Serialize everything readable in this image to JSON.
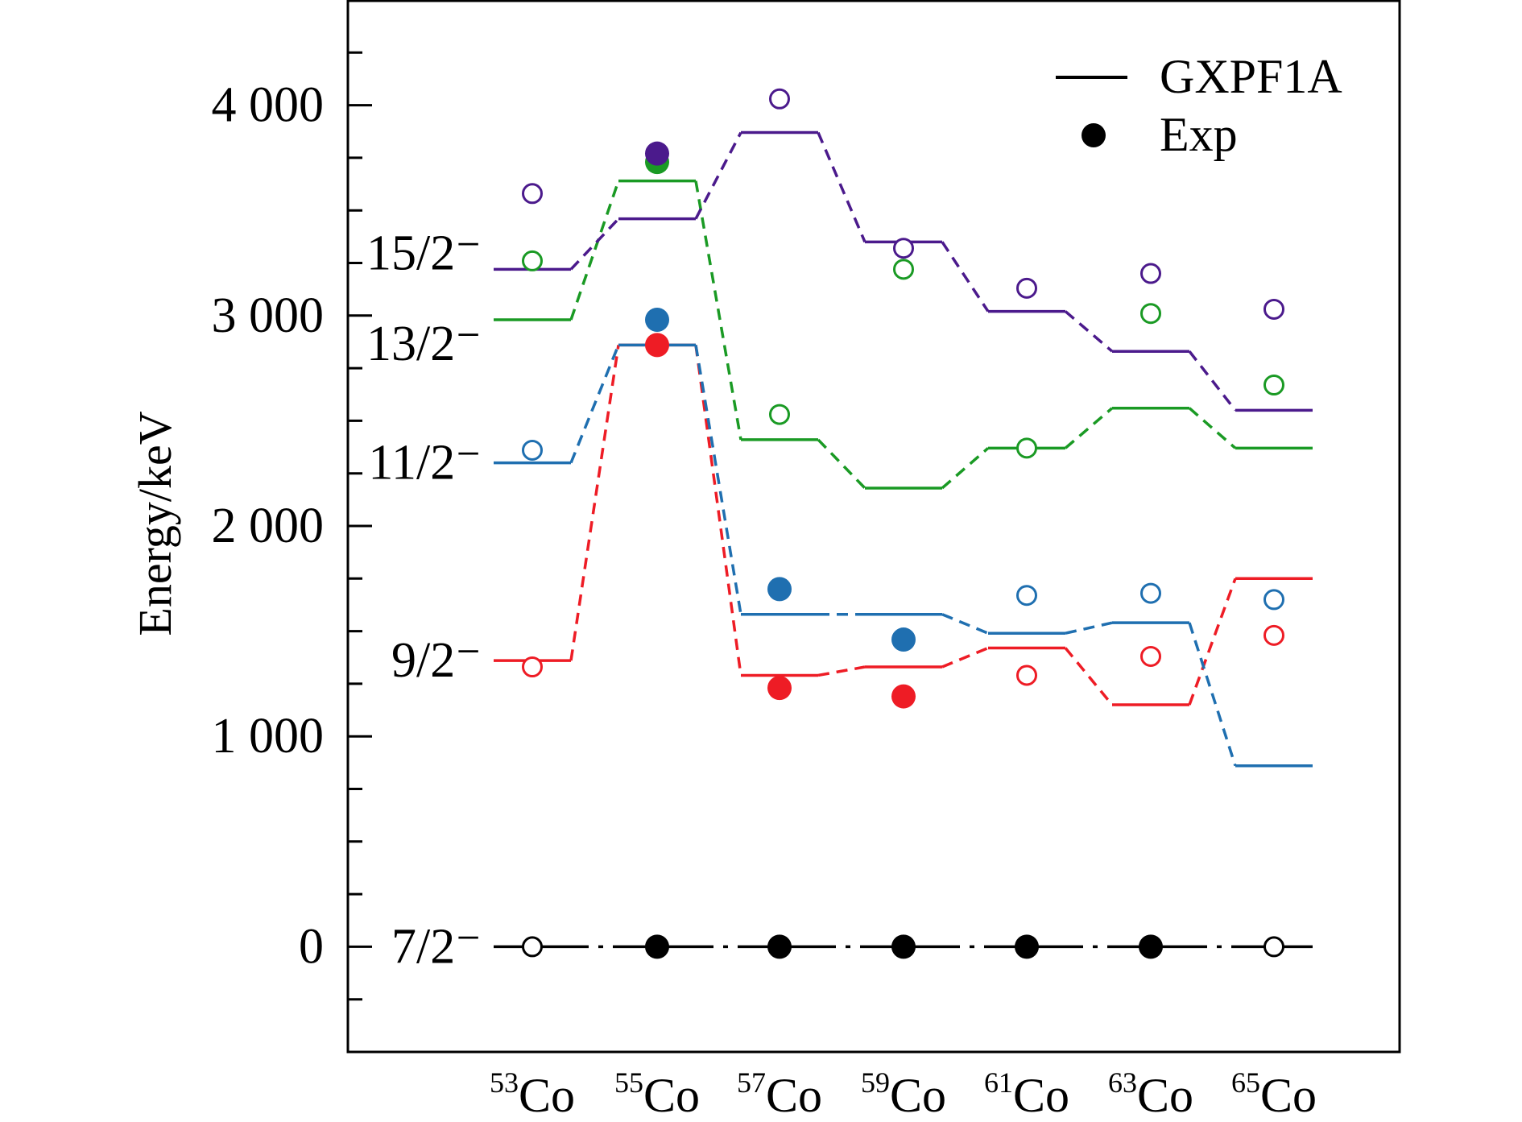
{
  "chart_data": {
    "type": "line",
    "ylabel": "Energy/keV",
    "ylim": [
      -500,
      4500
    ],
    "y_ticks": [
      0,
      1000,
      2000,
      3000,
      4000
    ],
    "y_tick_labels": [
      "0",
      "1 000",
      "2 000",
      "3 000",
      "4 000"
    ],
    "grid": false,
    "legend_position": "top-right",
    "legend": [
      {
        "label": "GXPF1A",
        "marker": "line"
      },
      {
        "label": "Exp",
        "marker": "filled-circle"
      }
    ],
    "nuclei": [
      {
        "mass": "53",
        "element": "Co"
      },
      {
        "mass": "55",
        "element": "Co"
      },
      {
        "mass": "57",
        "element": "Co"
      },
      {
        "mass": "59",
        "element": "Co"
      },
      {
        "mass": "61",
        "element": "Co"
      },
      {
        "mass": "63",
        "element": "Co"
      },
      {
        "mass": "65",
        "element": "Co"
      }
    ],
    "series": [
      {
        "level": "7/2⁻",
        "color": "#000000",
        "connector": "dashdot",
        "theory": [
          0,
          0,
          0,
          0,
          0,
          0,
          0
        ],
        "exp": [
          0,
          0,
          0,
          0,
          0,
          0,
          0
        ],
        "exp_filled": [
          false,
          true,
          true,
          true,
          true,
          true,
          false
        ]
      },
      {
        "level": "9/2⁻",
        "color": "#ee1c25",
        "connector": "dashed",
        "theory": [
          1360,
          2860,
          1290,
          1330,
          1420,
          1150,
          1750
        ],
        "exp": [
          1330,
          2860,
          1230,
          1190,
          1290,
          1380,
          1480
        ],
        "exp_filled": [
          false,
          true,
          true,
          true,
          false,
          false,
          false
        ]
      },
      {
        "level": "11/2⁻",
        "color": "#1f6fb0",
        "connector": "dashed",
        "theory": [
          2300,
          2860,
          1580,
          1580,
          1490,
          1540,
          860
        ],
        "exp": [
          2360,
          2980,
          1700,
          1460,
          1670,
          1680,
          1650
        ],
        "exp_filled": [
          false,
          true,
          true,
          true,
          false,
          false,
          false
        ]
      },
      {
        "level": "13/2⁻",
        "color": "#1a9a24",
        "connector": "dashed",
        "theory": [
          2980,
          3640,
          2410,
          2180,
          2370,
          2560,
          2370
        ],
        "exp": [
          3260,
          3730,
          2530,
          3220,
          2370,
          3010,
          2670
        ],
        "exp_filled": [
          false,
          true,
          false,
          false,
          false,
          false,
          false
        ]
      },
      {
        "level": "15/2⁻",
        "color": "#4b1a8c",
        "connector": "dashed",
        "theory": [
          3220,
          3460,
          3870,
          3350,
          3020,
          2830,
          2550
        ],
        "exp": [
          3580,
          3770,
          4030,
          3320,
          3130,
          3200,
          3030
        ],
        "exp_filled": [
          false,
          true,
          false,
          false,
          false,
          false,
          false
        ]
      }
    ]
  }
}
